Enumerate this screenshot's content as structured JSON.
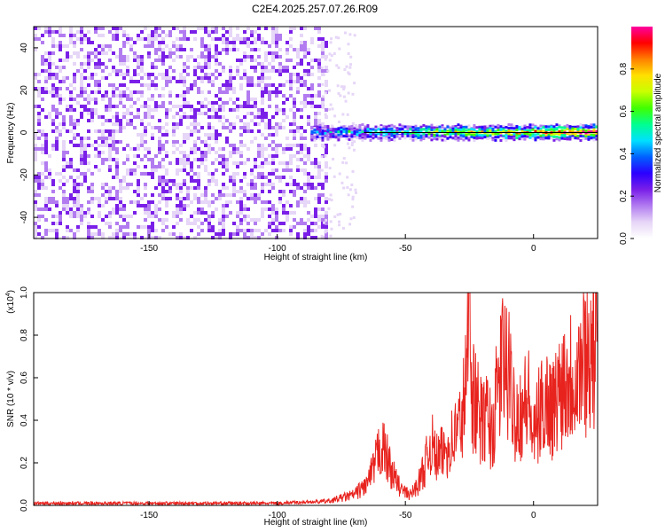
{
  "title": "C2E4.2025.257.07.26.R09",
  "chart_data": [
    {
      "type": "heatmap",
      "xlabel": "Height of straight line (km)",
      "ylabel": "Frequency (Hz)",
      "xlim": [
        -195,
        25
      ],
      "ylim": [
        -50,
        50
      ],
      "xticks": [
        -150,
        -100,
        -50,
        0
      ],
      "yticks": [
        -40,
        -20,
        0,
        20,
        40
      ],
      "noise_region_x": [
        -195,
        -80
      ],
      "signal_line_frequency": 0,
      "colorbar": {
        "label": "Normalized spectral amplitude",
        "range": [
          0,
          1
        ],
        "ticks": [
          "0.0",
          "0.2",
          "0.4",
          "0.6",
          "0.8"
        ],
        "colormap": [
          "#ffffff",
          "#e6d6f7",
          "#b27cf0",
          "#7a1fe8",
          "#2b00ff",
          "#0060ff",
          "#00e0ff",
          "#00ff90",
          "#40ff00",
          "#c8ff00",
          "#ffe000",
          "#ff8000",
          "#ff0000",
          "#ff00a0"
        ]
      }
    },
    {
      "type": "line",
      "xlabel": "Height of straight line (km)",
      "ylabel": "SNR (10 * v/v)",
      "multiplier_label": "(x10",
      "multiplier_exponent": "4",
      "xlim": [
        -195,
        25
      ],
      "ylim": [
        0,
        1.0
      ],
      "xticks": [
        -150,
        -100,
        -50,
        0
      ],
      "yticks": [
        "0.0",
        "0.2",
        "0.4",
        "0.6",
        "0.8",
        "1.0"
      ],
      "line_color": "#e8231e",
      "series": [
        {
          "name": "SNR",
          "x": [
            -195,
            -140,
            -100,
            -90,
            -80,
            -70,
            -65,
            -62,
            -60,
            -58,
            -55,
            -52,
            -50,
            -48,
            -45,
            -42,
            -40,
            -38,
            -35,
            -32,
            -30,
            -28,
            -26,
            -25,
            -24,
            -22,
            -20,
            -18,
            -16,
            -14,
            -12,
            -10,
            -8,
            -6,
            -4,
            -2,
            0,
            2,
            5,
            8,
            10,
            12,
            15,
            18,
            20,
            22,
            25
          ],
          "y": [
            0.01,
            0.01,
            0.01,
            0.015,
            0.02,
            0.05,
            0.1,
            0.18,
            0.28,
            0.25,
            0.15,
            0.08,
            0.06,
            0.05,
            0.1,
            0.2,
            0.3,
            0.22,
            0.25,
            0.3,
            0.35,
            0.4,
            0.6,
            1.0,
            0.55,
            0.45,
            0.38,
            0.42,
            0.33,
            0.55,
            0.68,
            0.62,
            0.48,
            0.42,
            0.46,
            0.5,
            0.3,
            0.42,
            0.5,
            0.45,
            0.55,
            0.6,
            0.62,
            0.65,
            0.7,
            0.72,
            0.75
          ]
        }
      ]
    }
  ]
}
